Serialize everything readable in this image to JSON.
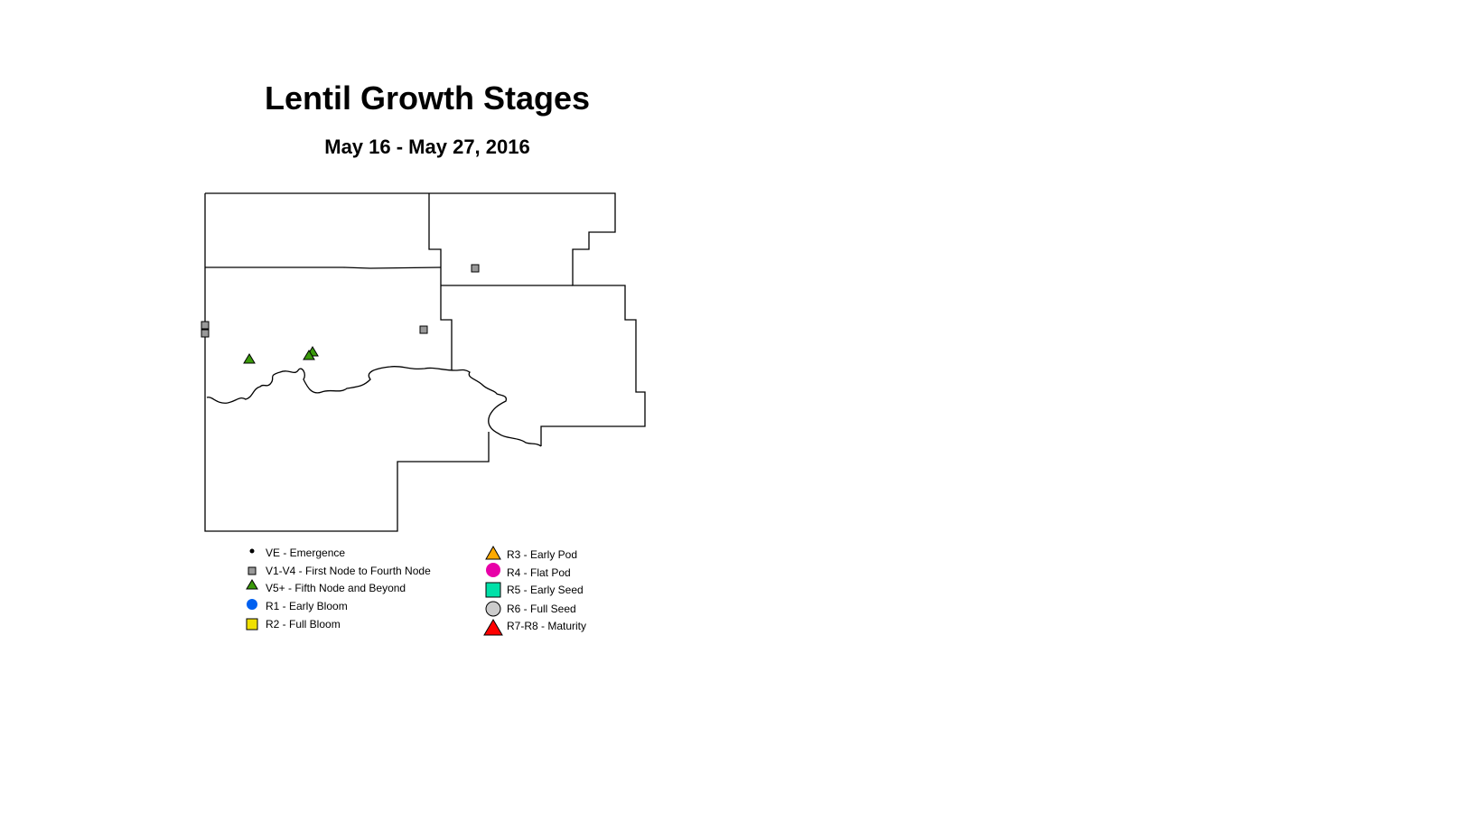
{
  "title": "Lentil Growth Stages",
  "subtitle": "May 16 - May 27, 2016",
  "legend": [
    {
      "label": "VE - Emergence",
      "symbol": "dot",
      "color": "#000000"
    },
    {
      "label": "V1-V4 - First Node to Fourth Node",
      "symbol": "square",
      "color": "#999999"
    },
    {
      "label": "V5+ - Fifth Node and Beyond",
      "symbol": "triangle",
      "color": "#3a9a0a"
    },
    {
      "label": "R1 - Early Bloom",
      "symbol": "circle",
      "color": "#0060f0"
    },
    {
      "label": "R2 - Full Bloom",
      "symbol": "square",
      "color": "#f0e000"
    },
    {
      "label": "R3 - Early Pod",
      "symbol": "triangle",
      "color": "#ffaa00"
    },
    {
      "label": "R4 - Flat Pod",
      "symbol": "circle",
      "color": "#e800a8"
    },
    {
      "label": "R5 - Early Seed",
      "symbol": "square",
      "color": "#00e0a8"
    },
    {
      "label": "R6 - Full Seed",
      "symbol": "circle",
      "color": "#cccccc"
    },
    {
      "label": "R7-R8 - Maturity",
      "symbol": "triangle",
      "color": "#ff0000"
    }
  ],
  "observations": [
    {
      "stage": "V1-V4",
      "count": 4
    },
    {
      "stage": "V5+",
      "count": 3
    }
  ]
}
